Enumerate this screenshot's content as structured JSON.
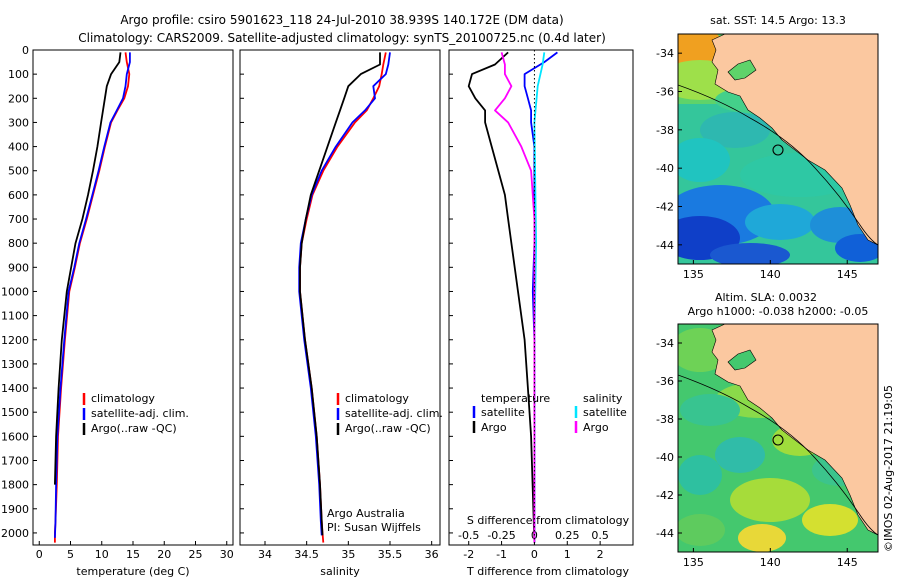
{
  "header": {
    "line1": "Argo profile: csiro 5901623_118 24-Jul-2010 38.939S 140.172E (DM data)",
    "line2": "Climatology: CARS2009. Satellite-adjusted climatology: synTS_20100725.nc (0.4d later)"
  },
  "colors": {
    "climatology": "#ff0000",
    "satellite": "#0000ff",
    "argo": "#000000",
    "sat_salinity": "#00e5ff",
    "argo_salinity_diff": "#ff00ff",
    "land": "#fbc8a0"
  },
  "chart_data": [
    {
      "type": "line",
      "id": "temperature-profile",
      "xlabel": "temperature (deg C)",
      "ylim": [
        2050,
        0
      ],
      "xlim": [
        -1,
        31
      ],
      "xticks": [
        0,
        5,
        10,
        15,
        20,
        25,
        30
      ],
      "yticks": [
        0,
        100,
        200,
        300,
        400,
        500,
        600,
        700,
        800,
        900,
        1000,
        1100,
        1200,
        1300,
        1400,
        1500,
        1600,
        1700,
        1800,
        1900,
        2000
      ],
      "legend": [
        "climatology",
        "satellite-adj. clim.",
        "Argo(..raw -QC)"
      ],
      "series": [
        {
          "name": "climatology",
          "color": "#ff0000",
          "x": [
            13.8,
            14.0,
            14.4,
            14.2,
            13.6,
            12.5,
            11.5,
            10.5,
            9.6,
            8.6,
            7.6,
            6.5,
            5.7,
            4.8,
            4.1,
            3.5,
            3.0,
            2.8,
            2.6,
            2.5,
            2.5
          ],
          "y": [
            10,
            50,
            100,
            150,
            200,
            250,
            300,
            400,
            500,
            600,
            700,
            800,
            900,
            1000,
            1200,
            1400,
            1600,
            1800,
            1950,
            2000,
            2040
          ]
        },
        {
          "name": "satellite-adj. clim.",
          "color": "#0000ff",
          "x": [
            14.5,
            14.5,
            14.0,
            13.8,
            13.4,
            12.4,
            11.4,
            10.4,
            9.5,
            8.5,
            7.5,
            6.4,
            5.6,
            4.7,
            4.0,
            3.4,
            2.9,
            2.7,
            2.6,
            2.5
          ],
          "y": [
            10,
            50,
            100,
            150,
            200,
            250,
            300,
            400,
            500,
            600,
            700,
            800,
            900,
            1000,
            1200,
            1400,
            1600,
            1800,
            1950,
            2020
          ]
        },
        {
          "name": "Argo(..raw -QC)",
          "color": "#000000",
          "x": [
            13.0,
            12.8,
            11.5,
            10.8,
            10.5,
            10.2,
            9.9,
            9.3,
            8.6,
            7.8,
            6.9,
            5.8,
            4.4,
            3.6,
            3.1,
            2.7,
            2.5
          ],
          "y": [
            10,
            50,
            100,
            150,
            200,
            250,
            300,
            400,
            500,
            600,
            700,
            800,
            1000,
            1200,
            1400,
            1600,
            1800
          ]
        }
      ]
    },
    {
      "type": "line",
      "id": "salinity-profile",
      "xlabel": "salinity",
      "ylim": [
        2050,
        0
      ],
      "xlim": [
        33.7,
        36.1
      ],
      "xticks": [
        34,
        34.5,
        35,
        35.5,
        36
      ],
      "xticklabels": [
        "34",
        "34.5",
        "35",
        "35.5",
        "36"
      ],
      "legend": [
        "climatology",
        "satellite-adj. clim.",
        "Argo(..raw -QC)"
      ],
      "annotations": [
        "Argo Australia",
        "PI: Susan Wijffels"
      ],
      "series": [
        {
          "name": "climatology",
          "color": "#ff0000",
          "x": [
            35.45,
            35.42,
            35.4,
            35.37,
            35.3,
            35.22,
            35.08,
            34.87,
            34.7,
            34.57,
            34.5,
            34.44,
            34.42,
            34.42,
            34.48,
            34.56,
            34.62,
            34.66,
            34.68,
            34.69,
            34.7
          ],
          "y": [
            10,
            60,
            100,
            150,
            200,
            250,
            300,
            400,
            500,
            600,
            700,
            800,
            900,
            1000,
            1200,
            1400,
            1600,
            1800,
            1950,
            2000,
            2040
          ]
        },
        {
          "name": "satellite-adj. clim.",
          "color": "#0000ff",
          "x": [
            35.5,
            35.48,
            35.45,
            35.3,
            35.32,
            35.2,
            35.05,
            34.85,
            34.68,
            34.56,
            34.49,
            34.43,
            34.41,
            34.41,
            34.47,
            34.55,
            34.61,
            34.65,
            34.67,
            34.68
          ],
          "y": [
            10,
            60,
            100,
            150,
            200,
            250,
            300,
            400,
            500,
            600,
            700,
            800,
            900,
            1000,
            1200,
            1400,
            1600,
            1800,
            1950,
            2010
          ]
        },
        {
          "name": "Argo(..raw -QC)",
          "color": "#000000",
          "x": [
            35.38,
            35.38,
            35.15,
            35.0,
            34.95,
            34.9,
            34.85,
            34.75,
            34.65,
            34.55,
            34.49,
            34.44,
            34.42,
            34.42,
            34.48,
            34.56,
            34.62,
            34.66,
            34.68,
            34.69
          ],
          "y": [
            10,
            60,
            100,
            150,
            200,
            250,
            300,
            400,
            500,
            600,
            700,
            800,
            900,
            1000,
            1200,
            1400,
            1600,
            1800,
            1950,
            2010
          ]
        }
      ]
    },
    {
      "type": "line",
      "id": "difference-profile",
      "xlabel": "T difference from climatology",
      "xlabel2": "S difference from climatology",
      "ylim": [
        2050,
        0
      ],
      "xlim": [
        -2.6,
        3.0
      ],
      "xticks": [
        -2,
        -1,
        0,
        1,
        2
      ],
      "xticks2": [
        -0.5,
        -0.25,
        0,
        0.25,
        0.5
      ],
      "xticklabels2": [
        "-0.5",
        "-0.25",
        "0",
        "0.25",
        "0.5"
      ],
      "legend_titles": [
        "temperature",
        "salinity"
      ],
      "legend": [
        "satellite",
        "Argo",
        "satellite",
        "Argo"
      ],
      "series": [
        {
          "name": "temperature satellite",
          "color": "#0000ff",
          "x": [
            0.7,
            0.3,
            -0.3,
            -0.3,
            -0.2,
            -0.1,
            -0.1,
            0.0,
            0.0,
            0.0,
            -0.05,
            0.0,
            0.0,
            0.0,
            0.0
          ],
          "y": [
            10,
            50,
            100,
            150,
            200,
            250,
            300,
            400,
            600,
            800,
            1000,
            1200,
            1400,
            1800,
            2040
          ]
        },
        {
          "name": "temperature Argo",
          "color": "#000000",
          "x": [
            -0.8,
            -1.2,
            -1.9,
            -2.0,
            -1.8,
            -1.5,
            -1.5,
            -1.3,
            -1.1,
            -0.9,
            -0.8,
            -0.7,
            -0.5,
            -0.3,
            -0.2,
            -0.1,
            0.0
          ],
          "y": [
            10,
            60,
            100,
            150,
            200,
            250,
            300,
            400,
            500,
            600,
            700,
            800,
            1000,
            1200,
            1400,
            1600,
            2040
          ]
        },
        {
          "name": "salinity satellite",
          "color": "#00e5ff",
          "x": [
            0.3,
            0.25,
            0.1,
            0.0,
            0.05,
            0.0,
            0.0
          ],
          "y": [
            10,
            60,
            150,
            300,
            800,
            1200,
            2040
          ]
        },
        {
          "name": "salinity Argo",
          "color": "#ff00ff",
          "x": [
            -1.0,
            -0.9,
            -0.9,
            -0.7,
            -0.9,
            -1.2,
            -0.8,
            -0.4,
            -0.1,
            0.0,
            0.0
          ],
          "y": [
            10,
            60,
            100,
            150,
            200,
            250,
            300,
            400,
            500,
            700,
            2040
          ]
        }
      ]
    },
    {
      "type": "heatmap",
      "id": "sst-map",
      "title": "sat. SST: 14.5 Argo: 13.3",
      "xlim": [
        134,
        147
      ],
      "ylim": [
        -45,
        -33
      ],
      "xticks": [
        135,
        140,
        145
      ],
      "yticks": [
        -34,
        -36,
        -38,
        -40,
        -42,
        -44
      ],
      "profile_location": [
        140.17,
        -38.94
      ]
    },
    {
      "type": "heatmap",
      "id": "sla-map",
      "title": "Altim. SLA: 0.0032",
      "subtitle": "Argo h1000: -0.038 h2000: -0.05",
      "xlim": [
        134,
        147
      ],
      "ylim": [
        -45,
        -33
      ],
      "xticks": [
        135,
        140,
        145
      ],
      "yticks": [
        -34,
        -36,
        -38,
        -40,
        -42,
        -44
      ],
      "profile_location": [
        140.17,
        -38.94
      ]
    }
  ],
  "footer": {
    "stamp": "©IMOS 02-Aug-2017 21:19:05"
  }
}
